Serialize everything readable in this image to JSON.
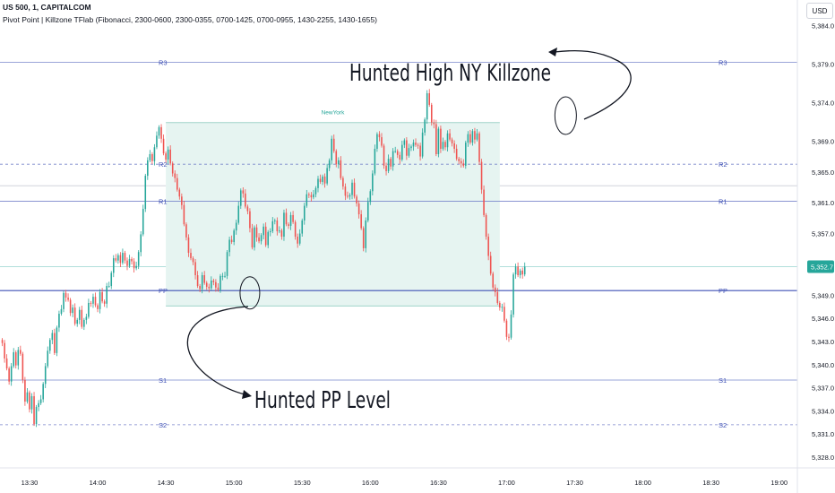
{
  "header": {
    "symbol_line": "US 500, 1, CAPITALCOM",
    "indicator_line": "Pivot Point | Killzone TFlab (Fibonacci, 2300-0600, 2300-0355, 0700-1425, 0700-0955, 1430-2255, 1430-1655)"
  },
  "currency_label": "USD",
  "colors": {
    "up": "#26a69a",
    "down": "#ef5350",
    "pivot_line": "#7986cb",
    "pp_line": "#3f51b5",
    "zone_fill": "#e6f4f1",
    "zone_border": "#9fd4c9",
    "price_tag": "#26a69a",
    "zone_label": "#26a69a"
  },
  "chart_data": {
    "type": "candlestick",
    "title": "",
    "xlabel": "",
    "ylabel": "",
    "y_ticks": [
      "5,384.0",
      "5,379.0",
      "5,374.0",
      "5,369.0",
      "5,365.0",
      "5,361.0",
      "5,357.0",
      "5,352.7",
      "5,349.0",
      "5,346.0",
      "5,343.0",
      "5,340.0",
      "5,337.0",
      "5,334.0",
      "5,331.0",
      "5,328.0"
    ],
    "y_tick_values": [
      5384,
      5379,
      5374,
      5369,
      5365,
      5361,
      5357,
      5352.7,
      5349,
      5346,
      5343,
      5340,
      5337,
      5334,
      5331,
      5328
    ],
    "x_ticks": [
      "13:30",
      "14:00",
      "14:30",
      "15:00",
      "15:30",
      "16:00",
      "16:30",
      "17:00",
      "17:30",
      "18:00",
      "18:30",
      "19:00"
    ],
    "x_tick_minutes": [
      810,
      840,
      870,
      900,
      930,
      960,
      990,
      1020,
      1050,
      1080,
      1110,
      1140
    ],
    "x_range_minutes": [
      797,
      1148
    ],
    "y_range": [
      5326.6,
      5387.3
    ],
    "last_price": "5,352.7",
    "last_price_value": 5352.7,
    "pivot_levels": [
      {
        "name": "R3",
        "value": 5379.2,
        "style": "solid"
      },
      {
        "name": "R2",
        "value": 5366.0,
        "style": "dashed"
      },
      {
        "name": "R1",
        "value": 5361.2,
        "style": "solid"
      },
      {
        "name": "PP",
        "value": 5349.6,
        "style": "solid"
      },
      {
        "name": "S1",
        "value": 5338.0,
        "style": "solid"
      },
      {
        "name": "S2",
        "value": 5332.2,
        "style": "dashed"
      }
    ],
    "extra_gray_lines": [
      5363.2,
      5352.7
    ],
    "killzone": {
      "label": "NewYork",
      "start_minute": 870,
      "end_minute": 1017,
      "high": 5371.4,
      "low": 5347.6
    },
    "annotations": [
      {
        "text": "Hunted High NY Killzone",
        "circle_minute": 1046,
        "circle_value": 5372.3
      },
      {
        "text": "Hunted PP Level",
        "circle_minute": 907,
        "circle_value": 5349.3
      }
    ],
    "candles": {
      "start_minute": 798,
      "interval_minutes": 1,
      "values": [
        5342.8,
        5340.8,
        5339.5,
        5337.8,
        5339.8,
        5341.6,
        5339.9,
        5341.9,
        5341.4,
        5338.0,
        5335.2,
        5336.4,
        5334.2,
        5335.9,
        5332.3,
        5334.5,
        5335.0,
        5335.5,
        5337.5,
        5339.8,
        5341.8,
        5343.2,
        5344.1,
        5341.5,
        5344.8,
        5346.6,
        5347.2,
        5349.3,
        5348.7,
        5348.4,
        5346.7,
        5347.4,
        5345.3,
        5345.8,
        5347.1,
        5344.9,
        5345.8,
        5346.2,
        5348.0,
        5347.9,
        5348.8,
        5347.7,
        5347.2,
        5349.4,
        5348.2,
        5347.9,
        5350.2,
        5350.2,
        5351.9,
        5353.8,
        5353.5,
        5354.2,
        5353.2,
        5354.5,
        5353.5,
        5352.8,
        5353.7,
        5353.4,
        5352.5,
        5352.8,
        5354.6,
        5356.9,
        5360.2,
        5364.5,
        5366.5,
        5367.3,
        5366.4,
        5368.2,
        5369.7,
        5370.8,
        5369.3,
        5367.4,
        5366.6,
        5367.9,
        5366.1,
        5364.8,
        5364.2,
        5362.7,
        5361.8,
        5360.7,
        5358.2,
        5356.5,
        5354.5,
        5353.8,
        5353.3,
        5351.6,
        5350.2,
        5349.8,
        5351.6,
        5350.6,
        5350.1,
        5349.9,
        5350.9,
        5350.7,
        5350.0,
        5349.7,
        5351.5,
        5351.5,
        5351.5,
        5354.6,
        5356.2,
        5355.9,
        5357.4,
        5358.4,
        5360.6,
        5362.6,
        5362.2,
        5360.5,
        5359.9,
        5357.7,
        5355.2,
        5357.8,
        5356.5,
        5356.0,
        5356.8,
        5357.9,
        5355.5,
        5357.2,
        5357.3,
        5358.6,
        5358.7,
        5357.3,
        5357.4,
        5356.6,
        5359.7,
        5358.2,
        5358.0,
        5359.4,
        5358.5,
        5356.6,
        5355.7,
        5357.0,
        5358.7,
        5360.6,
        5362.1,
        5362.0,
        5361.7,
        5362.1,
        5362.9,
        5364.1,
        5363.7,
        5364.4,
        5363.5,
        5365.5,
        5366.5,
        5369.3,
        5367.7,
        5366.0,
        5366.5,
        5364.2,
        5363.1,
        5361.9,
        5361.8,
        5362.0,
        5363.6,
        5361.8,
        5360.9,
        5359.5,
        5357.7,
        5355.1,
        5358.7,
        5361.1,
        5362.5,
        5364.8,
        5368.0,
        5369.9,
        5369.5,
        5368.4,
        5365.8,
        5365.1,
        5366.7,
        5365.7,
        5367.7,
        5367.7,
        5367.2,
        5366.6,
        5368.5,
        5369.1,
        5367.1,
        5368.1,
        5368.3,
        5368.8,
        5368.5,
        5368.4,
        5367.0,
        5370.1,
        5371.8,
        5375.2,
        5373.7,
        5371.4,
        5371.2,
        5367.3,
        5370.6,
        5368.0,
        5368.9,
        5368.2,
        5370.0,
        5369.2,
        5368.7,
        5368.0,
        5366.7,
        5366.4,
        5366.1,
        5365.8,
        5368.8,
        5369.9,
        5368.8,
        5370.3,
        5369.2,
        5370.0,
        5366.3,
        5362.7,
        5359.4,
        5356.6,
        5354.1,
        5351.8,
        5350.0,
        5349.4,
        5348.0,
        5347.4,
        5347.5,
        5345.7,
        5343.6,
        5343.5,
        5346.5,
        5351.7,
        5352.7,
        5351.6,
        5352.2,
        5351.7,
        5352.7
      ]
    }
  }
}
